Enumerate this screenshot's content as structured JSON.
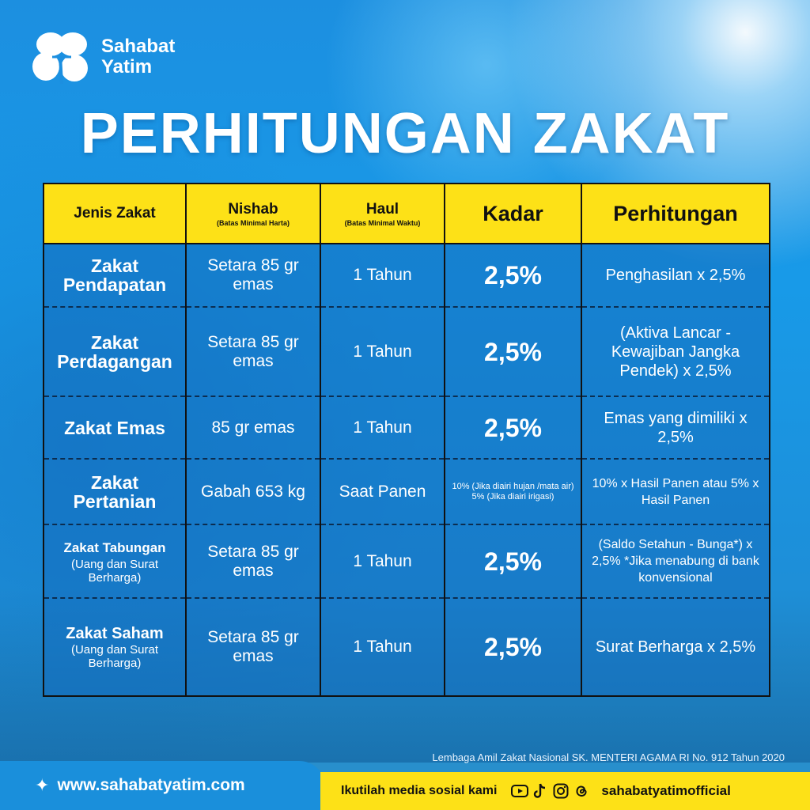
{
  "brand": {
    "line1": "Sahabat",
    "line2": "Yatim"
  },
  "title": "PERHITUNGAN ZAKAT",
  "table": {
    "headers": [
      {
        "main": "Jenis Zakat",
        "sub": ""
      },
      {
        "main": "Nishab",
        "sub": "(Batas Minimal Harta)"
      },
      {
        "main": "Haul",
        "sub": "(Batas Minimal Waktu)"
      },
      {
        "main": "Kadar",
        "sub": ""
      },
      {
        "main": "Perhitungan",
        "sub": ""
      }
    ],
    "rows": [
      {
        "jenis": "Zakat Pendapatan",
        "jenis_note": "",
        "nishab": "Setara 85 gr emas",
        "haul": "1 Tahun",
        "kadar": "2,5%",
        "perhitungan": "Penghasilan x 2,5%"
      },
      {
        "jenis": "Zakat Perdagangan",
        "jenis_note": "",
        "nishab": "Setara 85 gr emas",
        "haul": "1 Tahun",
        "kadar": "2,5%",
        "perhitungan": "(Aktiva Lancar - Kewajiban Jangka Pendek) x 2,5%"
      },
      {
        "jenis": "Zakat Emas",
        "jenis_note": "",
        "nishab": "85 gr emas",
        "haul": "1 Tahun",
        "kadar": "2,5%",
        "perhitungan": "Emas yang dimiliki x 2,5%"
      },
      {
        "jenis": "Zakat Pertanian",
        "jenis_note": "",
        "nishab": "Gabah 653 kg",
        "haul": "Saat Panen",
        "kadar": "10% (Jika diairi hujan /mata air) 5% (Jika diairi irigasi)",
        "perhitungan": "10% x Hasil Panen atau 5% x Hasil Panen"
      },
      {
        "jenis": "Zakat Tabungan",
        "jenis_note": "(Uang dan Surat Berharga)",
        "nishab": "Setara 85 gr emas",
        "haul": "1 Tahun",
        "kadar": "2,5%",
        "perhitungan": "(Saldo Setahun - Bunga*) x 2,5% *Jika menabung di bank konvensional"
      },
      {
        "jenis": "Zakat Saham",
        "jenis_note": "(Uang dan Surat Berharga)",
        "nishab": "Setara 85 gr emas",
        "haul": "1 Tahun",
        "kadar": "2,5%",
        "perhitungan": "Surat Berharga x 2,5%"
      }
    ]
  },
  "lembaga": "Lembaga Amil Zakat Nasional SK. MENTERI AGAMA RI No. 912 Tahun 2020",
  "footer": {
    "url": "www.sahabatyatim.com",
    "follow": "Ikutilah media sosial kami",
    "social_icons": [
      "youtube-icon",
      "tiktok-icon",
      "instagram-icon",
      "threads-icon"
    ],
    "handle": "sahabatyatimofficial"
  },
  "colors": {
    "accent": "#fde117",
    "brand_blue": "#1a8fdb"
  }
}
